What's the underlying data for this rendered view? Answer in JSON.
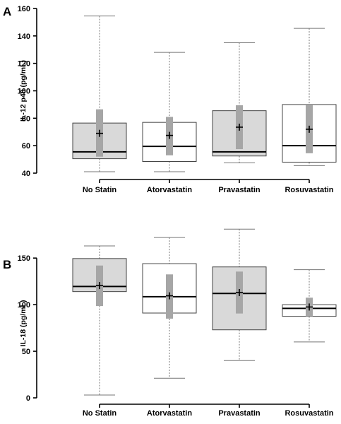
{
  "chart_data": [
    {
      "panel": "A",
      "type": "box",
      "ylabel": "IL-12 p40 (pg/mL)",
      "ylim": [
        40,
        160
      ],
      "yticks": [
        40,
        60,
        80,
        100,
        120,
        140,
        160
      ],
      "categories": [
        "No Statin",
        "Atorvastatin",
        "Pravastatin",
        "Rosuvastatin"
      ],
      "box_fill": [
        "#d9d9d9",
        "#ffffff",
        "#d9d9d9",
        "#ffffff"
      ],
      "boxes": [
        {
          "min": 41,
          "q1": 50.5,
          "median": 55.5,
          "q3": 76.5,
          "max": 154.5,
          "mean": 69,
          "ci_low": 52,
          "ci_high": 86.5
        },
        {
          "min": 41,
          "q1": 48.5,
          "median": 59.5,
          "q3": 77,
          "max": 128,
          "mean": 67.5,
          "ci_low": 53,
          "ci_high": 81
        },
        {
          "min": 47.5,
          "q1": 52.5,
          "median": 55.5,
          "q3": 85.5,
          "max": 135,
          "mean": 73.5,
          "ci_low": 57.5,
          "ci_high": 89.5
        },
        {
          "min": 45.5,
          "q1": 48,
          "median": 60,
          "q3": 90,
          "max": 145.5,
          "mean": 72,
          "ci_low": 54.5,
          "ci_high": 89.5
        }
      ]
    },
    {
      "panel": "B",
      "type": "box",
      "ylabel": "IL-18 (pg/mL)",
      "ylim": [
        0,
        160
      ],
      "yticks": [
        0,
        50,
        100,
        150
      ],
      "categories": [
        "No Statin",
        "Atorvastatin",
        "Pravastatin",
        "Rosuvastatin"
      ],
      "box_fill": [
        "#d9d9d9",
        "#ffffff",
        "#d9d9d9",
        "#ffffff"
      ],
      "boxes": [
        {
          "min": 3,
          "q1": 114,
          "median": 119.5,
          "q3": 149.5,
          "max": 163,
          "mean": 120.5,
          "ci_low": 98.5,
          "ci_high": 142
        },
        {
          "min": 21,
          "q1": 91,
          "median": 108.5,
          "q3": 144,
          "max": 172,
          "mean": 109.5,
          "ci_low": 85,
          "ci_high": 132.5
        },
        {
          "min": 40,
          "q1": 73,
          "median": 112,
          "q3": 140.5,
          "max": 181,
          "mean": 113,
          "ci_low": 90.5,
          "ci_high": 135.5
        },
        {
          "min": 60,
          "q1": 87.5,
          "median": 96,
          "q3": 100,
          "max": 137.5,
          "mean": 97.5,
          "ci_low": 87.5,
          "ci_high": 107.5
        }
      ]
    }
  ]
}
